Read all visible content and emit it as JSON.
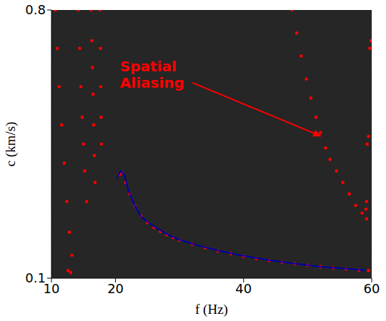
{
  "chart_data": {
    "type": "scatter",
    "xlabel": "f (Hz)",
    "ylabel": "c (km/s)",
    "xlim": [
      10,
      60
    ],
    "ylim": [
      0.1,
      0.8
    ],
    "xticks": [
      10,
      20,
      40,
      60
    ],
    "yticks": [
      0.1,
      0.8
    ],
    "grid": true,
    "series": [
      {
        "type": "scatter",
        "color": "#ff0000",
        "marker": "dot",
        "x": [
          10.6,
          10.9,
          11.2,
          11.6,
          12.0,
          12.4,
          12.8,
          13.2,
          12.6,
          13.0
        ],
        "values": [
          0.8,
          0.7,
          0.6,
          0.5,
          0.4,
          0.3,
          0.22,
          0.16,
          0.12,
          0.115
        ]
      },
      {
        "type": "scatter",
        "color": "#ff0000",
        "marker": "dot",
        "x": [
          14.2,
          14.4,
          14.6,
          14.8,
          15.0,
          15.2,
          15.5
        ],
        "values": [
          0.8,
          0.7,
          0.6,
          0.52,
          0.45,
          0.38,
          0.3
        ]
      },
      {
        "type": "scatter",
        "color": "#ff0000",
        "marker": "dot",
        "x": [
          16.2,
          16.3,
          16.4,
          16.5,
          16.6,
          16.7,
          16.8
        ],
        "values": [
          0.8,
          0.72,
          0.65,
          0.58,
          0.5,
          0.42,
          0.35
        ]
      },
      {
        "type": "scatter",
        "color": "#ff0000",
        "marker": "dot",
        "x": [
          17.6,
          17.65,
          17.7,
          17.75,
          17.8
        ],
        "values": [
          0.8,
          0.7,
          0.6,
          0.52,
          0.45
        ]
      },
      {
        "type": "scatter",
        "color": "#ff0000",
        "marker": "dot",
        "x": [
          20.6,
          21.0,
          21.6,
          22.2,
          23,
          24,
          25,
          26,
          27,
          28,
          29,
          30,
          32,
          34,
          36,
          38,
          40,
          42,
          44,
          46,
          48,
          50,
          52,
          54,
          56,
          58,
          59.5
        ],
        "values": [
          0.37,
          0.375,
          0.35,
          0.32,
          0.29,
          0.262,
          0.245,
          0.232,
          0.222,
          0.213,
          0.206,
          0.199,
          0.189,
          0.179,
          0.171,
          0.164,
          0.157,
          0.151,
          0.146,
          0.142,
          0.138,
          0.134,
          0.13,
          0.127,
          0.124,
          0.121,
          0.12
        ]
      },
      {
        "type": "scatter",
        "color": "#ff0000",
        "marker": "dot",
        "x": [
          47.6,
          48.3,
          49.0,
          49.8,
          50.5,
          51.3,
          52.0,
          52.8,
          53.5,
          54.5,
          55.5,
          56.5,
          57.5,
          58.5,
          59.2
        ],
        "values": [
          0.8,
          0.74,
          0.68,
          0.62,
          0.57,
          0.52,
          0.48,
          0.44,
          0.41,
          0.38,
          0.35,
          0.32,
          0.29,
          0.27,
          0.255
        ]
      },
      {
        "type": "scatter",
        "color": "#ff0000",
        "marker": "dot",
        "x": [
          59.9,
          59.7,
          59.5,
          59.3,
          59.2,
          59.1
        ],
        "values": [
          0.72,
          0.7,
          0.47,
          0.45,
          0.3,
          0.28
        ]
      },
      {
        "type": "line",
        "color": "#0000aa",
        "line_style": "solid",
        "x": [
          20.2,
          20.8,
          21.4,
          22.0,
          23,
          24,
          26,
          28,
          30,
          33,
          36,
          40,
          44,
          48,
          52,
          56,
          59
        ],
        "values": [
          0.36,
          0.38,
          0.37,
          0.33,
          0.29,
          0.26,
          0.235,
          0.215,
          0.2,
          0.185,
          0.172,
          0.158,
          0.147,
          0.138,
          0.13,
          0.125,
          0.121
        ]
      }
    ],
    "annotations": [
      {
        "text": "Spatial Aliasing",
        "color": "#ff0000",
        "xy": [
          52.2,
          0.47
        ],
        "xytext": [
          20.7,
          0.64
        ]
      }
    ]
  }
}
